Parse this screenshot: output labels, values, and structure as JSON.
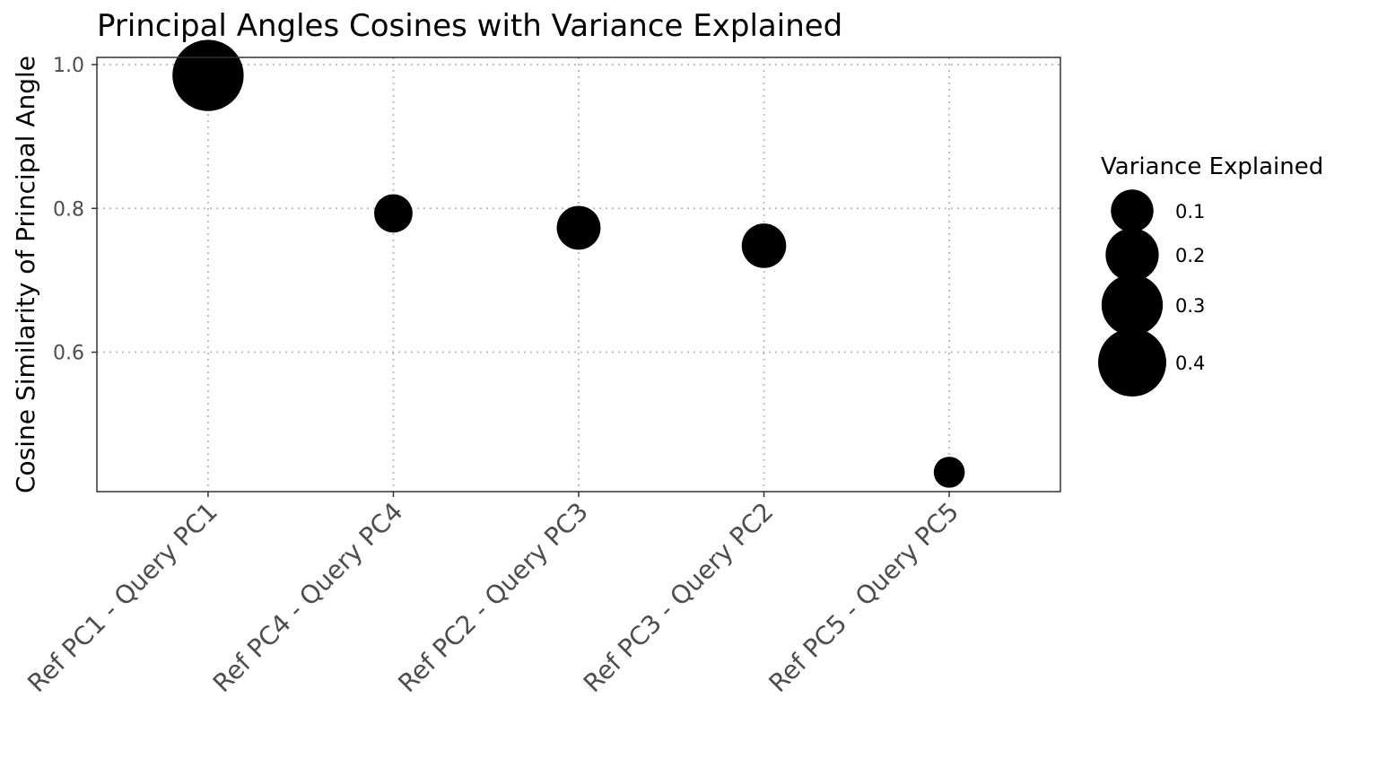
{
  "chart_data": {
    "type": "scatter",
    "title": "Principal Angles Cosines with Variance Explained",
    "xlabel": "",
    "ylabel": "Cosine Similarity of Principal Angle",
    "categories": [
      "Ref PC1 - Query PC1",
      "Ref PC4 - Query PC4",
      "Ref PC2 - Query PC3",
      "Ref PC3 - Query PC2",
      "Ref PC5 - Query PC5"
    ],
    "series": [
      {
        "values": [
          0.985,
          0.793,
          0.773,
          0.748,
          0.433
        ],
        "size": [
          0.45,
          0.07,
          0.11,
          0.115,
          0.03
        ]
      }
    ],
    "yticks": [
      0.6,
      0.8,
      1.0
    ],
    "ytick_labels": [
      "0.6",
      "0.8",
      "1.0"
    ],
    "ylim": [
      0.406,
      1.01
    ],
    "grid": true,
    "legend": {
      "title": "Variance Explained",
      "position": "right",
      "values": [
        0.1,
        0.2,
        0.3,
        0.4
      ],
      "labels": [
        "0.1",
        "0.2",
        "0.3",
        "0.4"
      ]
    },
    "colors": {
      "point": "#000000",
      "grid": "#bdbdbd",
      "panel_border": "#333333",
      "tick_text": "#4d4d4d"
    }
  }
}
